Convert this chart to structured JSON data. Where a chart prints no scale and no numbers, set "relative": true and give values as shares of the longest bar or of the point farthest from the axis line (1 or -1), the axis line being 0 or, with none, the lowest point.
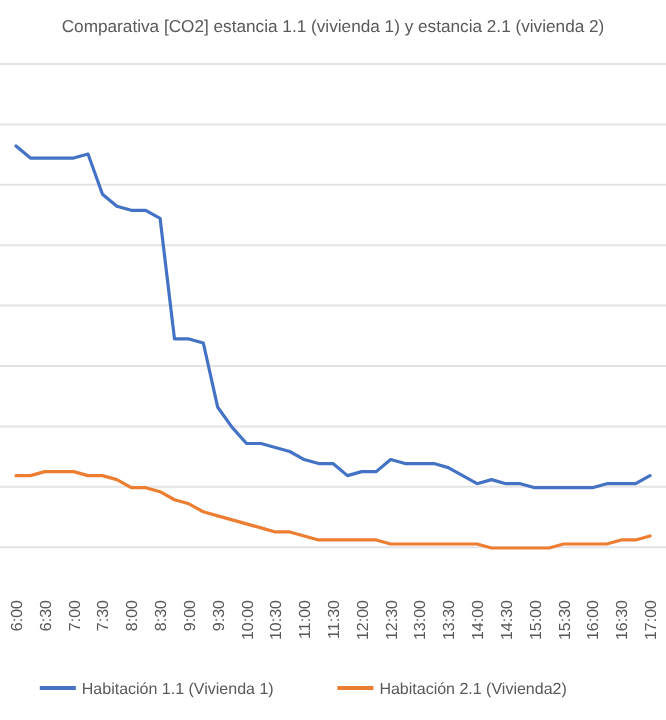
{
  "chart_data": {
    "type": "line",
    "relative": true,
    "grid": "y",
    "legend": "bottom",
    "title": "Comparativa [CO2] estancia 1.1 (vivienda 1) y estancia 2.1 (vivienda 2)",
    "categories": [
      "6:00",
      null,
      "6:30",
      null,
      "7:00",
      null,
      "7:30",
      null,
      "8:00",
      null,
      "8:30",
      null,
      "9:00",
      null,
      "9:30",
      null,
      "10:00",
      null,
      "10:30",
      null,
      "11:00",
      null,
      "11:30",
      null,
      "12:00",
      null,
      "12:30",
      null,
      "13:00",
      null,
      "13:30",
      null,
      "14:00",
      null,
      "14:30",
      null,
      "15:00",
      null,
      "15:30",
      null,
      "16:00",
      null,
      "16:30",
      null,
      "17:00"
    ],
    "series": [
      {
        "name": "Habitación 1.1 (Vivienda 1)",
        "color": "#4472c4",
        "values": [
          1.0,
          0.97,
          0.97,
          0.97,
          0.97,
          0.98,
          0.88,
          0.85,
          0.84,
          0.84,
          0.82,
          0.52,
          0.52,
          0.51,
          0.35,
          0.3,
          0.26,
          0.26,
          0.25,
          0.24,
          0.22,
          0.21,
          0.21,
          0.18,
          0.19,
          0.19,
          0.22,
          0.21,
          0.21,
          0.21,
          0.2,
          0.18,
          0.16,
          0.17,
          0.16,
          0.16,
          0.15,
          0.15,
          0.15,
          0.15,
          0.15,
          0.16,
          0.16,
          0.16,
          0.18
        ]
      },
      {
        "name": "Habitación 2.1 (Vivienda2)",
        "color": "#ed7d31",
        "values": [
          0.18,
          0.18,
          0.19,
          0.19,
          0.19,
          0.18,
          0.18,
          0.17,
          0.15,
          0.15,
          0.14,
          0.12,
          0.11,
          0.09,
          0.08,
          0.07,
          0.06,
          0.05,
          0.04,
          0.04,
          0.03,
          0.02,
          0.02,
          0.02,
          0.02,
          0.02,
          0.01,
          0.01,
          0.01,
          0.01,
          0.01,
          0.01,
          0.01,
          0,
          0,
          0,
          0,
          0,
          0.01,
          0.01,
          0.01,
          0.01,
          0.02,
          0.02,
          0.03
        ]
      }
    ]
  }
}
